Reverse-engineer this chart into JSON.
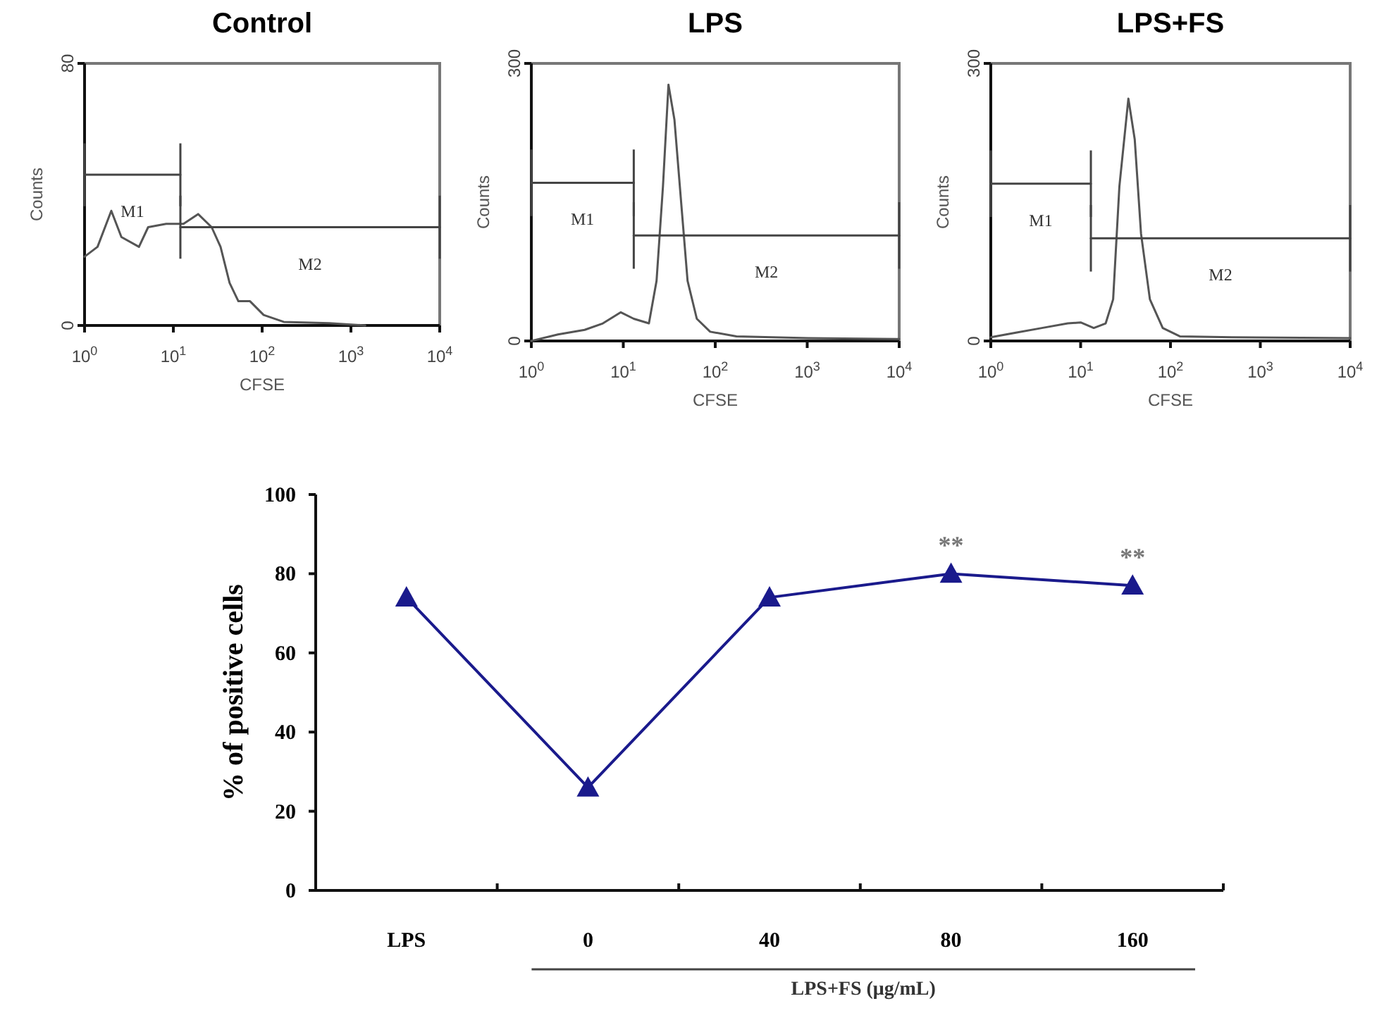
{
  "chart_data": [
    {
      "type": "line",
      "title": "Control",
      "xlabel": "CFSE",
      "ylabel": "Counts",
      "log": "x",
      "series": [
        {
          "color": "#555555",
          "x": [
            1,
            1.4,
            2.0,
            2.6,
            4.1,
            5.2,
            8.3,
            13,
            19,
            27,
            34,
            43,
            54,
            73,
            104,
            175,
            570,
            1450
          ],
          "values": [
            21,
            24,
            35,
            27,
            24,
            30,
            31,
            31,
            34,
            30,
            24,
            13,
            7.4,
            7.4,
            3.2,
            1.1,
            0.7,
            0
          ]
        },
        {
          "name": "M1",
          "color": "#444444",
          "x": [
            1,
            12
          ],
          "values": [
            46,
            46
          ]
        },
        {
          "name": "M2",
          "color": "#444444",
          "x": [
            12,
            10000
          ],
          "values": [
            30,
            30
          ]
        }
      ],
      "xlim": [
        1,
        10000
      ],
      "ylim": [
        0,
        80
      ],
      "xticks": [
        {
          "value": 1,
          "label": "10$^{0}$"
        },
        {
          "value": 10,
          "label": "10$^{1}$"
        },
        {
          "value": 100,
          "label": "10$^{2}$"
        },
        {
          "value": 1000,
          "label": "10$^{3}$"
        },
        {
          "value": 10000,
          "label": "10$^{4}$"
        }
      ],
      "yticks": [
        0,
        80
      ]
    },
    {
      "type": "line",
      "title": "LPS",
      "xlabel": "CFSE",
      "ylabel": "Counts",
      "log": "x",
      "series": [
        {
          "color": "#555555",
          "x": [
            1,
            1.95,
            3.8,
            6.0,
            9.4,
            13,
            19,
            23,
            27,
            31,
            36,
            42,
            50,
            63,
            88,
            170,
            1020,
            10000
          ],
          "values": [
            0,
            7,
            12,
            19,
            31,
            24,
            19,
            65,
            167,
            277,
            239,
            157,
            65,
            24,
            10,
            5,
            3,
            2
          ]
        },
        {
          "name": "M1",
          "color": "#444444",
          "x": [
            1,
            13
          ],
          "values": [
            171,
            171
          ]
        },
        {
          "name": "M2",
          "color": "#444444",
          "x": [
            13,
            10000
          ],
          "values": [
            114,
            114
          ]
        }
      ],
      "xlim": [
        1,
        10000
      ],
      "ylim": [
        0,
        300
      ],
      "xticks": [
        {
          "value": 1,
          "label": "10$^{0}$"
        },
        {
          "value": 10,
          "label": "10$^{1}$"
        },
        {
          "value": 100,
          "label": "10$^{2}$"
        },
        {
          "value": 1000,
          "label": "10$^{3}$"
        },
        {
          "value": 10000,
          "label": "10$^{4}$"
        }
      ],
      "yticks": [
        0,
        300
      ]
    },
    {
      "type": "line",
      "title": "LPS+FS",
      "xlabel": "CFSE",
      "ylabel": "Counts",
      "log": "x",
      "series": [
        {
          "color": "#555555",
          "x": [
            1,
            1.9,
            3.7,
            7.2,
            10,
            14,
            19,
            23,
            27,
            34,
            40,
            47,
            59,
            82,
            127,
            480,
            10000
          ],
          "values": [
            4,
            9,
            14,
            19,
            20,
            14,
            19,
            45,
            167,
            262,
            218,
            116,
            45,
            14,
            5,
            4,
            3
          ]
        },
        {
          "name": "M1",
          "color": "#444444",
          "x": [
            1,
            13
          ],
          "values": [
            170,
            170
          ]
        },
        {
          "name": "M2",
          "color": "#444444",
          "x": [
            13,
            10000
          ],
          "values": [
            111,
            111
          ]
        }
      ],
      "xlim": [
        1,
        10000
      ],
      "ylim": [
        0,
        300
      ],
      "xticks": [
        {
          "value": 1,
          "label": "10$^{0}$"
        },
        {
          "value": 10,
          "label": "10$^{1}$"
        },
        {
          "value": 100,
          "label": "10$^{2}$"
        },
        {
          "value": 1000,
          "label": "10$^{3}$"
        },
        {
          "value": 10000,
          "label": "10$^{4}$"
        }
      ],
      "yticks": [
        0,
        300
      ]
    },
    {
      "type": "line",
      "ylabel": "% of positive cells",
      "xlabel": "LPS+FS (μg/mL)",
      "color": "#1a1a8c",
      "marker": "triangle",
      "categories": [
        "LPS",
        "0",
        "40",
        "80",
        "160"
      ],
      "values": [
        74,
        26,
        74,
        80,
        77
      ],
      "ylim": [
        0,
        100
      ],
      "yticks": [
        0,
        20,
        40,
        60,
        80,
        100
      ],
      "annotations": [
        {
          "text": "**",
          "x": "80",
          "y": 80
        },
        {
          "text": "**",
          "x": "160",
          "y": 77
        }
      ]
    }
  ]
}
